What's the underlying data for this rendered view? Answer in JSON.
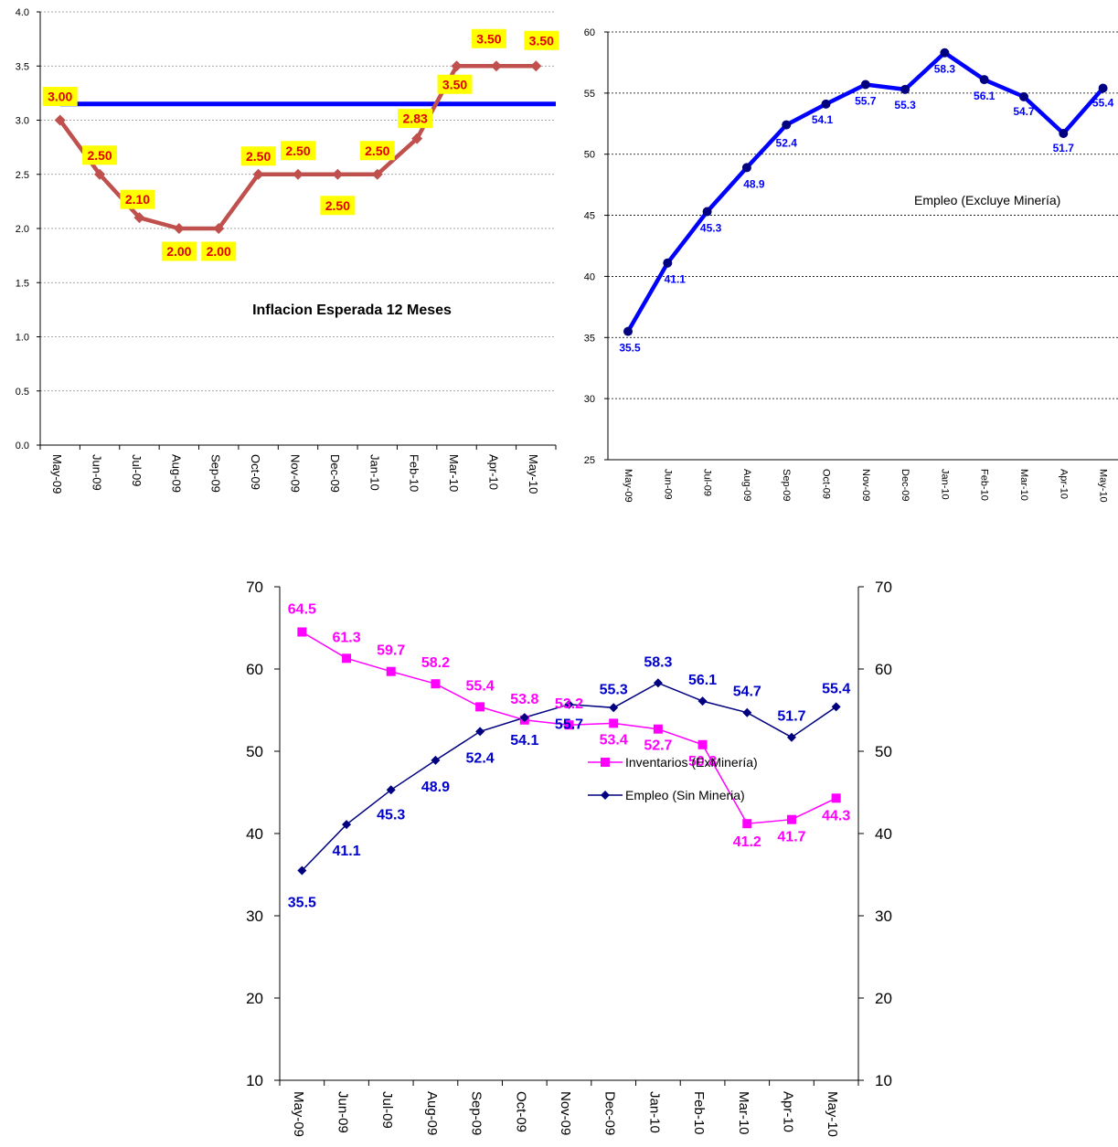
{
  "chart_data": [
    {
      "type": "line",
      "title": "Inflacion Esperada 12 Meses",
      "categories": [
        "May-09",
        "Jun-09",
        "Jul-09",
        "Aug-09",
        "Sep-09",
        "Oct-09",
        "Nov-09",
        "Dec-09",
        "Jan-10",
        "Feb-10",
        "Mar-10",
        "Apr-10",
        "May-10"
      ],
      "ylim": [
        0,
        4.0
      ],
      "yticks": [
        "0.0",
        "0.5",
        "1.0",
        "1.5",
        "2.0",
        "2.5",
        "3.0",
        "3.5",
        "4.0"
      ],
      "grid": true,
      "series": [
        {
          "values": [
            3.0,
            2.5,
            2.1,
            2.0,
            2.0,
            2.5,
            2.5,
            2.5,
            2.5,
            2.83,
            3.5,
            3.5,
            3.5
          ],
          "labels": [
            "3.00",
            "2.50",
            "2.10",
            "2.00",
            "2.00",
            "2.50",
            "2.50",
            "2.50",
            "2.50",
            "2.83",
            "3.50",
            "3.50",
            "3.50"
          ],
          "color": "#c0504d",
          "marker": "diamond"
        }
      ],
      "reference_line": {
        "value": 3.15,
        "color": "#0000ff"
      },
      "label_style": {
        "text_color": "#e00000",
        "background": "#ffff00"
      }
    },
    {
      "type": "line",
      "title": "Empleo (Excluye Minería)",
      "categories": [
        "May-09",
        "Jun-09",
        "Jul-09",
        "Aug-09",
        "Sep-09",
        "Oct-09",
        "Nov-09",
        "Dec-09",
        "Jan-10",
        "Feb-10",
        "Mar-10",
        "Apr-10",
        "May-10"
      ],
      "ylim": [
        25,
        60
      ],
      "yticks": [
        "25",
        "30",
        "35",
        "40",
        "45",
        "50",
        "55",
        "60"
      ],
      "grid": true,
      "series": [
        {
          "values": [
            35.5,
            41.1,
            45.3,
            48.9,
            52.4,
            54.1,
            55.7,
            55.3,
            58.3,
            56.1,
            54.7,
            51.7,
            55.4
          ],
          "labels": [
            "35.5",
            "41.1",
            "45.3",
            "48.9",
            "52.4",
            "54.1",
            "55.7",
            "55.3",
            "58.3",
            "56.1",
            "54.7",
            "51.7",
            "55.4"
          ],
          "color": "#0000ff",
          "marker": "circle"
        }
      ]
    },
    {
      "type": "line",
      "categories": [
        "May-09",
        "Jun-09",
        "Jul-09",
        "Aug-09",
        "Sep-09",
        "Oct-09",
        "Nov-09",
        "Dec-09",
        "Jan-10",
        "Feb-10",
        "Mar-10",
        "Apr-10",
        "May-10"
      ],
      "ylim": [
        10,
        70
      ],
      "yticks": [
        "10",
        "20",
        "30",
        "40",
        "50",
        "60",
        "70"
      ],
      "y2ticks": [
        "10",
        "20",
        "30",
        "40",
        "50",
        "60",
        "70"
      ],
      "grid": false,
      "legend_position": "center-right",
      "series": [
        {
          "name": "Inventarios (ExMinería)",
          "values": [
            64.5,
            61.3,
            59.7,
            58.2,
            55.4,
            53.8,
            53.2,
            53.4,
            52.7,
            50.8,
            41.2,
            41.7,
            44.3
          ],
          "labels": [
            "64.5",
            "61.3",
            "59.7",
            "58.2",
            "55.4",
            "53.8",
            "53.2",
            "53.4",
            "52.7",
            "50.8",
            "41.2",
            "41.7",
            "44.3"
          ],
          "color": "#ff00ff",
          "marker": "square"
        },
        {
          "name": "Empleo (Sin Mineria)",
          "values": [
            35.5,
            41.1,
            45.3,
            48.9,
            52.4,
            54.1,
            55.7,
            55.3,
            58.3,
            56.1,
            54.7,
            51.7,
            55.4
          ],
          "labels": [
            "35.5",
            "41.1",
            "45.3",
            "48.9",
            "52.4",
            "54.1",
            "55.7",
            "55.3",
            "58.3",
            "56.1",
            "54.7",
            "51.7",
            "55.4"
          ],
          "color": "#000080",
          "label_color": "#0000cc",
          "marker": "diamond"
        }
      ]
    }
  ]
}
